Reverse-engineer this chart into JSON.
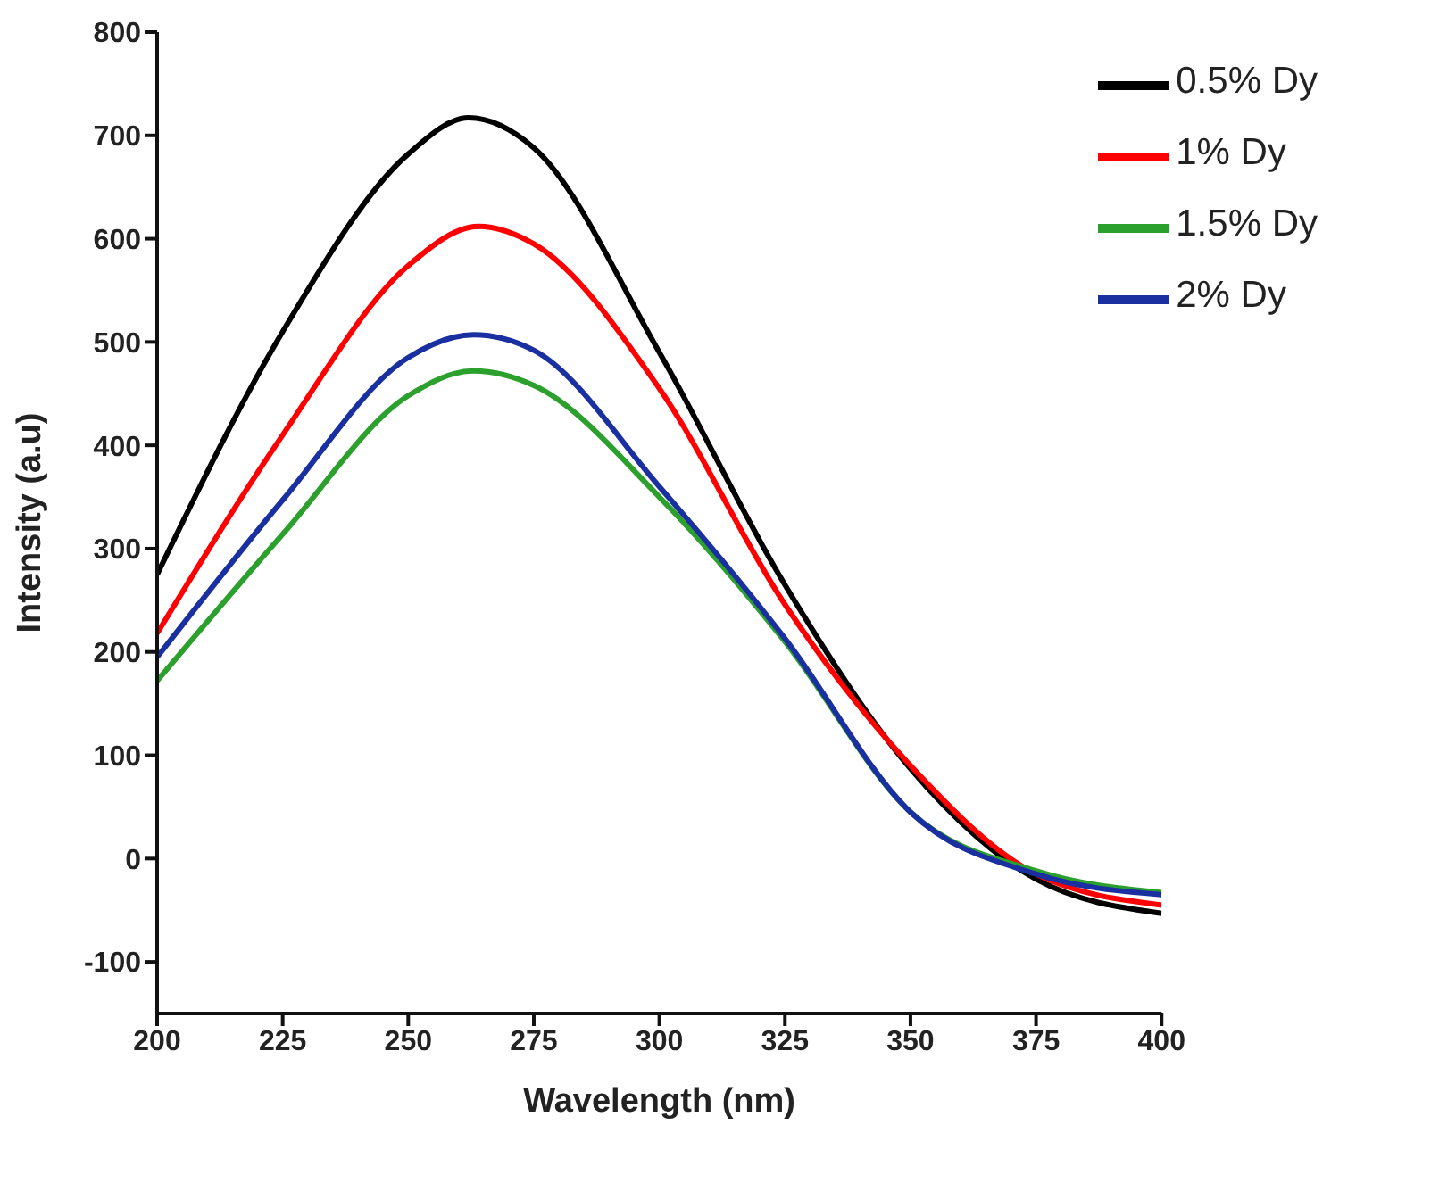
{
  "chart_data": {
    "type": "line",
    "xlabel": "Wavelength (nm)",
    "ylabel": "Intensity (a.u)",
    "xlim": [
      200,
      400
    ],
    "xticks": [
      200,
      225,
      250,
      275,
      300,
      325,
      350,
      375,
      400
    ],
    "ylim": [
      -150,
      800
    ],
    "yticks": [
      -100,
      0,
      100,
      200,
      300,
      400,
      500,
      600,
      700,
      800
    ],
    "legend": "top right",
    "grid": false,
    "marker": "none",
    "line_style": "solid",
    "series": [
      {
        "name": "0.5% Dy",
        "color": "#000000",
        "x": [
          200,
          225,
          250,
          262,
          275,
          300,
          325,
          350,
          375,
          400
        ],
        "values": [
          275,
          510,
          682,
          717,
          688,
          490,
          265,
          87,
          -20,
          -53
        ]
      },
      {
        "name": "1% Dy",
        "color": "#ff0000",
        "x": [
          200,
          225,
          250,
          264,
          275,
          300,
          325,
          350,
          375,
          400
        ],
        "values": [
          218,
          410,
          574,
          612,
          595,
          455,
          246,
          90,
          -15,
          -45
        ]
      },
      {
        "name": "1.5% Dy",
        "color": "#2ca02c",
        "x": [
          200,
          225,
          250,
          263,
          275,
          300,
          325,
          350,
          375,
          400
        ],
        "values": [
          172,
          314,
          448,
          472,
          458,
          350,
          210,
          45,
          -12,
          -33
        ]
      },
      {
        "name": "2% Dy",
        "color": "#1a2fa0",
        "x": [
          200,
          225,
          250,
          263,
          275,
          300,
          325,
          350,
          375,
          400
        ],
        "values": [
          195,
          347,
          485,
          507,
          492,
          360,
          213,
          45,
          -15,
          -35
        ]
      }
    ]
  }
}
